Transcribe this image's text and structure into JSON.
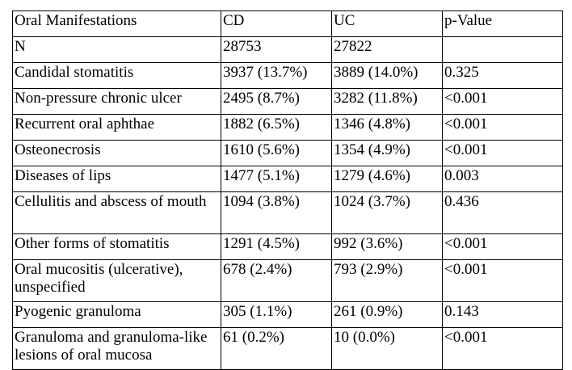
{
  "table": {
    "headers": [
      "Oral Manifestations",
      "CD",
      "UC",
      "p-Value"
    ],
    "rows": [
      [
        "N",
        "28753",
        "27822",
        ""
      ],
      [
        "Candidal stomatitis",
        "3937 (13.7%)",
        "3889 (14.0%)",
        "0.325"
      ],
      [
        "Non-pressure chronic ulcer",
        "2495 (8.7%)",
        "3282 (11.8%)",
        "<0.001"
      ],
      [
        "Recurrent oral aphthae",
        "1882 (6.5%)",
        "1346 (4.8%)",
        "<0.001"
      ],
      [
        "Osteonecrosis",
        "1610 (5.6%)",
        "1354 (4.9%)",
        "<0.001"
      ],
      [
        "Diseases of lips",
        "1477 (5.1%)",
        "1279 (4.6%)",
        "0.003"
      ],
      [
        "Cellulitis and abscess of mouth",
        "1094 (3.8%)",
        "1024 (3.7%)",
        "0.436"
      ],
      [
        "Other forms of stomatitis",
        "1291 (4.5%)",
        "992 (3.6%)",
        "<0.001"
      ],
      [
        "Oral mucositis (ulcerative), unspecified",
        "678 (2.4%)",
        "793 (2.9%)",
        "<0.001"
      ],
      [
        "Pyogenic granuloma",
        "305 (1.1%)",
        "261 (0.9%)",
        "0.143"
      ],
      [
        "Granuloma and granuloma-like lesions of oral mucosa",
        "61 (0.2%)",
        "10 (0.0%)",
        "<0.001"
      ]
    ]
  }
}
